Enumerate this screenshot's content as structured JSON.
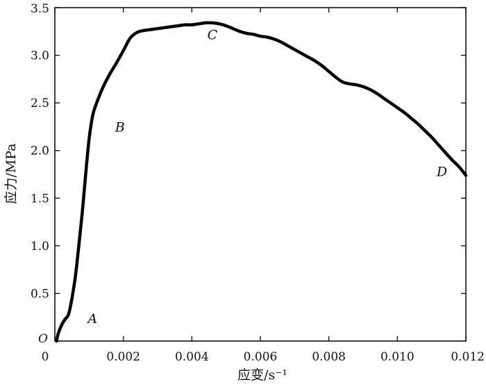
{
  "chart_data": {
    "type": "line",
    "xlabel": "应变/s⁻¹",
    "ylabel": "应力/MPa",
    "xlim": [
      0,
      0.012
    ],
    "ylim": [
      0,
      3.5
    ],
    "x_ticks": [
      0,
      0.002,
      0.004,
      0.006,
      0.008,
      0.01,
      0.012
    ],
    "x_tick_labels": [
      "0",
      "0.002",
      "0.004",
      "0.006",
      "0.008",
      "0.010",
      "0.012"
    ],
    "y_ticks": [
      0.5,
      1.0,
      1.5,
      2.0,
      2.5,
      3.0,
      3.5
    ],
    "y_tick_labels": [
      "0.5",
      "1.0",
      "1.5",
      "2.0",
      "2.5",
      "3.0",
      "3.5"
    ],
    "origin_label": "O",
    "grid": false,
    "series": [
      {
        "x": [
          5e-05,
          0.0001,
          0.0002,
          0.0003,
          0.0004,
          0.0005,
          0.0006,
          0.0007,
          0.0008,
          0.0009,
          0.001,
          0.0011,
          0.0012,
          0.0014,
          0.0016,
          0.0018,
          0.002,
          0.0022,
          0.0024,
          0.0026,
          0.0028,
          0.003,
          0.0032,
          0.0034,
          0.0036,
          0.0038,
          0.004,
          0.0042,
          0.0044,
          0.0046,
          0.0048,
          0.005,
          0.0052,
          0.0054,
          0.0056,
          0.0058,
          0.006,
          0.0062,
          0.0064,
          0.0066,
          0.0068,
          0.007,
          0.0072,
          0.0074,
          0.0076,
          0.0078,
          0.008,
          0.0082,
          0.0084,
          0.0086,
          0.0088,
          0.009,
          0.0092,
          0.0094,
          0.0096,
          0.0098,
          0.01,
          0.0102,
          0.0104,
          0.0106,
          0.0108,
          0.011,
          0.0112,
          0.0114,
          0.0116,
          0.0118,
          0.012
        ],
        "y": [
          0.0,
          0.08,
          0.17,
          0.23,
          0.28,
          0.45,
          0.68,
          1.0,
          1.35,
          1.75,
          2.12,
          2.36,
          2.48,
          2.66,
          2.8,
          2.92,
          3.05,
          3.18,
          3.24,
          3.26,
          3.27,
          3.28,
          3.29,
          3.3,
          3.31,
          3.32,
          3.32,
          3.33,
          3.34,
          3.34,
          3.33,
          3.31,
          3.28,
          3.25,
          3.23,
          3.22,
          3.2,
          3.19,
          3.17,
          3.14,
          3.1,
          3.06,
          3.02,
          2.98,
          2.94,
          2.89,
          2.83,
          2.77,
          2.72,
          2.7,
          2.69,
          2.67,
          2.64,
          2.6,
          2.55,
          2.5,
          2.45,
          2.4,
          2.34,
          2.28,
          2.21,
          2.14,
          2.06,
          1.98,
          1.9,
          1.83,
          1.74
        ]
      }
    ],
    "annotations": [
      {
        "text": "A",
        "x": 0.0011,
        "y": 0.19
      },
      {
        "text": "B",
        "x": 0.0019,
        "y": 2.2
      },
      {
        "text": "C",
        "x": 0.0046,
        "y": 3.17
      },
      {
        "text": "D",
        "x": 0.0113,
        "y": 1.73
      }
    ]
  }
}
